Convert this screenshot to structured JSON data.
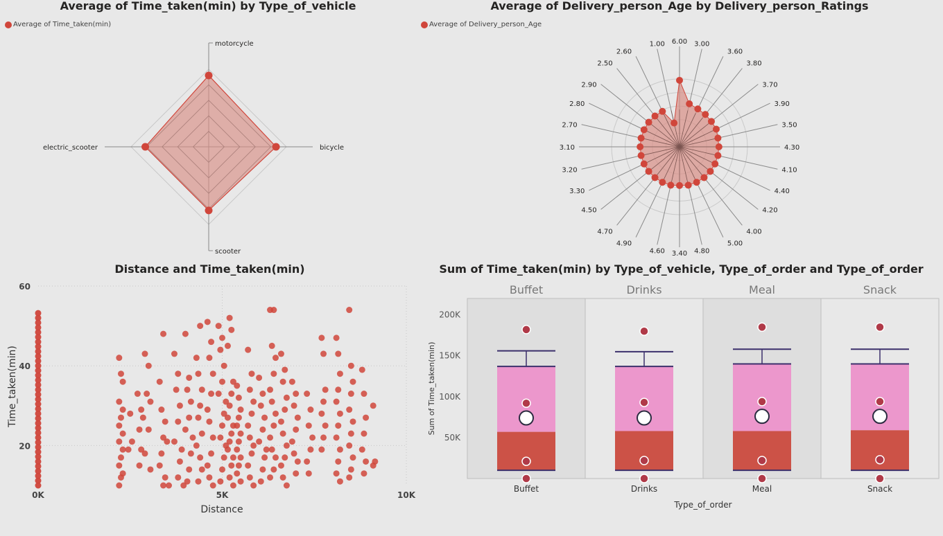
{
  "colors": {
    "series": "#d0463b",
    "fill": "#d98f86",
    "box_upper": "#ec97cc",
    "box_lower": "#cc5247",
    "whisker": "#3b2f6b",
    "mean": "#ffffff",
    "outlier": "#b03a48"
  },
  "chart_data": [
    {
      "type": "radar",
      "title": "Average of Time_taken(min) by Type_of_vehicle",
      "legend": [
        {
          "name": "Average of Time_taken(min)"
        }
      ],
      "legend_position": "top-left",
      "categories": [
        "motorcycle",
        "bicycle",
        "scooter",
        "electric_scooter"
      ],
      "series": [
        {
          "name": "Average of Time_taken(min)",
          "values": [
            27.6,
            26.0,
            24.6,
            24.5
          ]
        }
      ],
      "rmax": 30,
      "rings": 5
    },
    {
      "type": "radar",
      "title": "Average of Delivery_person_Age by Delivery_person_Ratings",
      "legend": [
        {
          "name": "Average of Delivery_person_Age"
        }
      ],
      "legend_position": "top-left",
      "categories": [
        "6.00",
        "3.00",
        "3.60",
        "3.80",
        "3.70",
        "3.90",
        "3.50",
        "4.30",
        "4.10",
        "4.40",
        "4.20",
        "4.00",
        "5.00",
        "4.80",
        "3.40",
        "4.60",
        "4.90",
        "4.70",
        "4.50",
        "3.30",
        "3.20",
        "3.10",
        "2.70",
        "2.80",
        "2.90",
        "2.50",
        "2.60",
        "1.00"
      ],
      "series": [
        {
          "name": "Average of Delivery_person_Age",
          "values": [
            98,
            65,
            62,
            61,
            60,
            60,
            58,
            58,
            58,
            58,
            58,
            58,
            58,
            58,
            57,
            58,
            58,
            58,
            58,
            58,
            58,
            58,
            58,
            58,
            58,
            58,
            58,
            36
          ]
        }
      ],
      "rmax": 100,
      "rings": 5
    },
    {
      "type": "scatter",
      "title": "Distance and Time_taken(min)",
      "xlabel": "Distance",
      "ylabel": "Time_taken(min)",
      "xlim": [
        0,
        10000
      ],
      "ylim": [
        10,
        60
      ],
      "x_ticks": [
        "0K",
        "5K",
        "10K"
      ],
      "y_ticks": [
        "20",
        "40",
        "60"
      ],
      "grid": true,
      "points": [
        [
          2200,
          42
        ],
        [
          2250,
          38
        ],
        [
          2300,
          36
        ],
        [
          2200,
          31
        ],
        [
          2300,
          29
        ],
        [
          2250,
          27
        ],
        [
          2200,
          25
        ],
        [
          2300,
          23
        ],
        [
          2200,
          21
        ],
        [
          2300,
          19
        ],
        [
          2250,
          17
        ],
        [
          2200,
          15
        ],
        [
          2300,
          13
        ],
        [
          2250,
          12
        ],
        [
          2200,
          10
        ],
        [
          2500,
          28
        ],
        [
          2550,
          21
        ],
        [
          2450,
          19
        ],
        [
          2700,
          33
        ],
        [
          2800,
          29
        ],
        [
          2750,
          24
        ],
        [
          2850,
          27
        ],
        [
          2800,
          19
        ],
        [
          2750,
          15
        ],
        [
          2900,
          43
        ],
        [
          3000,
          40
        ],
        [
          2950,
          33
        ],
        [
          3050,
          31
        ],
        [
          3000,
          24
        ],
        [
          2900,
          18
        ],
        [
          3050,
          14
        ],
        [
          3300,
          36
        ],
        [
          3400,
          48
        ],
        [
          3350,
          29
        ],
        [
          3450,
          26
        ],
        [
          3400,
          22
        ],
        [
          3350,
          18
        ],
        [
          3300,
          15
        ],
        [
          3500,
          21
        ],
        [
          3450,
          12
        ],
        [
          3400,
          10
        ],
        [
          3550,
          10
        ],
        [
          3700,
          43
        ],
        [
          3800,
          38
        ],
        [
          3750,
          34
        ],
        [
          3850,
          30
        ],
        [
          3800,
          26
        ],
        [
          3700,
          21
        ],
        [
          3900,
          19
        ],
        [
          3850,
          16
        ],
        [
          3800,
          12
        ],
        [
          3950,
          10
        ],
        [
          4000,
          48
        ],
        [
          4100,
          37
        ],
        [
          4050,
          34
        ],
        [
          4150,
          31
        ],
        [
          4100,
          27
        ],
        [
          4000,
          24
        ],
        [
          4200,
          22
        ],
        [
          4150,
          18
        ],
        [
          4100,
          14
        ],
        [
          4050,
          11
        ],
        [
          4300,
          42
        ],
        [
          4350,
          38
        ],
        [
          4400,
          50
        ],
        [
          4450,
          34
        ],
        [
          4400,
          30
        ],
        [
          4350,
          27
        ],
        [
          4450,
          23
        ],
        [
          4300,
          20
        ],
        [
          4400,
          17
        ],
        [
          4450,
          14
        ],
        [
          4350,
          11
        ],
        [
          4600,
          51
        ],
        [
          4700,
          46
        ],
        [
          4650,
          42
        ],
        [
          4750,
          38
        ],
        [
          4700,
          33
        ],
        [
          4600,
          29
        ],
        [
          4650,
          26
        ],
        [
          4750,
          22
        ],
        [
          4700,
          18
        ],
        [
          4600,
          15
        ],
        [
          4650,
          12
        ],
        [
          4750,
          10
        ],
        [
          4900,
          50
        ],
        [
          5000,
          47
        ],
        [
          4950,
          44
        ],
        [
          5050,
          40
        ],
        [
          5000,
          36
        ],
        [
          4900,
          33
        ],
        [
          5100,
          31
        ],
        [
          5050,
          28
        ],
        [
          5000,
          25
        ],
        [
          4950,
          22
        ],
        [
          5100,
          20
        ],
        [
          5050,
          17
        ],
        [
          5000,
          14
        ],
        [
          4950,
          11
        ],
        [
          5200,
          52
        ],
        [
          5250,
          49
        ],
        [
          5150,
          45
        ],
        [
          5300,
          36
        ],
        [
          5250,
          33
        ],
        [
          5200,
          30
        ],
        [
          5150,
          27
        ],
        [
          5300,
          25
        ],
        [
          5250,
          23
        ],
        [
          5200,
          21
        ],
        [
          5150,
          19
        ],
        [
          5300,
          17
        ],
        [
          5250,
          15
        ],
        [
          5200,
          12
        ],
        [
          5300,
          10
        ],
        [
          5400,
          35
        ],
        [
          5450,
          32
        ],
        [
          5500,
          29
        ],
        [
          5450,
          27
        ],
        [
          5400,
          25
        ],
        [
          5500,
          23
        ],
        [
          5450,
          21
        ],
        [
          5400,
          19
        ],
        [
          5500,
          17
        ],
        [
          5450,
          15
        ],
        [
          5400,
          13
        ],
        [
          5500,
          11
        ],
        [
          5700,
          44
        ],
        [
          5800,
          38
        ],
        [
          5750,
          34
        ],
        [
          5850,
          31
        ],
        [
          5800,
          28
        ],
        [
          5700,
          25
        ],
        [
          5750,
          22
        ],
        [
          5850,
          20
        ],
        [
          5800,
          18
        ],
        [
          5700,
          15
        ],
        [
          5750,
          12
        ],
        [
          5850,
          10
        ],
        [
          6000,
          37
        ],
        [
          6100,
          33
        ],
        [
          6050,
          30
        ],
        [
          6150,
          27
        ],
        [
          6100,
          24
        ],
        [
          6000,
          21
        ],
        [
          6200,
          19
        ],
        [
          6150,
          17
        ],
        [
          6100,
          14
        ],
        [
          6050,
          11
        ],
        [
          6300,
          54
        ],
        [
          6400,
          54
        ],
        [
          6350,
          45
        ],
        [
          6450,
          42
        ],
        [
          6400,
          38
        ],
        [
          6300,
          34
        ],
        [
          6350,
          31
        ],
        [
          6450,
          28
        ],
        [
          6400,
          25
        ],
        [
          6300,
          22
        ],
        [
          6350,
          19
        ],
        [
          6450,
          17
        ],
        [
          6400,
          14
        ],
        [
          6300,
          12
        ],
        [
          6600,
          43
        ],
        [
          6700,
          39
        ],
        [
          6650,
          36
        ],
        [
          6750,
          32
        ],
        [
          6700,
          29
        ],
        [
          6600,
          26
        ],
        [
          6650,
          23
        ],
        [
          6750,
          20
        ],
        [
          6700,
          17
        ],
        [
          6600,
          15
        ],
        [
          6650,
          12
        ],
        [
          6750,
          10
        ],
        [
          6900,
          36
        ],
        [
          7000,
          33
        ],
        [
          6950,
          30
        ],
        [
          7050,
          27
        ],
        [
          7000,
          24
        ],
        [
          6900,
          21
        ],
        [
          6950,
          18
        ],
        [
          7050,
          16
        ],
        [
          7000,
          13
        ],
        [
          7300,
          33
        ],
        [
          7400,
          29
        ],
        [
          7350,
          25
        ],
        [
          7450,
          22
        ],
        [
          7400,
          19
        ],
        [
          7300,
          16
        ],
        [
          7350,
          13
        ],
        [
          7700,
          47
        ],
        [
          7750,
          43
        ],
        [
          7800,
          34
        ],
        [
          7750,
          31
        ],
        [
          7700,
          28
        ],
        [
          7800,
          25
        ],
        [
          7750,
          22
        ],
        [
          7700,
          19
        ],
        [
          8100,
          47
        ],
        [
          8150,
          43
        ],
        [
          8200,
          38
        ],
        [
          8150,
          34
        ],
        [
          8100,
          31
        ],
        [
          8200,
          28
        ],
        [
          8150,
          25
        ],
        [
          8100,
          22
        ],
        [
          8200,
          19
        ],
        [
          8150,
          16
        ],
        [
          8100,
          13
        ],
        [
          8200,
          11
        ],
        [
          8450,
          54
        ],
        [
          8500,
          40
        ],
        [
          8550,
          36
        ],
        [
          8500,
          33
        ],
        [
          8450,
          29
        ],
        [
          8550,
          26
        ],
        [
          8500,
          23
        ],
        [
          8450,
          20
        ],
        [
          8550,
          17
        ],
        [
          8500,
          14
        ],
        [
          8450,
          12
        ],
        [
          8800,
          39
        ],
        [
          8850,
          33
        ],
        [
          8900,
          27
        ],
        [
          8850,
          23
        ],
        [
          8800,
          19
        ],
        [
          8900,
          16
        ],
        [
          8850,
          13
        ],
        [
          9100,
          30
        ],
        [
          9150,
          16
        ],
        [
          9100,
          15
        ]
      ]
    },
    {
      "type": "box",
      "title": "Sum of Time_taken(min) by Type_of_vehicle, Type_of_order and Type_of_order",
      "xlabel": "Type_of_order",
      "ylabel": "Sum of Time_taken(min)",
      "ylim": [
        0,
        220000
      ],
      "y_ticks": [
        "50K",
        "100K",
        "150K",
        "200K"
      ],
      "categories": [
        "Buffet",
        "Drinks",
        "Meal",
        "Snack"
      ],
      "boxes": [
        {
          "min": 10000,
          "q1": 10000,
          "median": 57000,
          "q3": 137000,
          "max": 156000,
          "mean": 74000,
          "points": [
            0,
            21000,
            92000,
            182000
          ]
        },
        {
          "min": 10000,
          "q1": 10000,
          "median": 58000,
          "q3": 137000,
          "max": 155000,
          "mean": 74000,
          "points": [
            0,
            22000,
            93000,
            180000
          ]
        },
        {
          "min": 10000,
          "q1": 10000,
          "median": 58000,
          "q3": 140000,
          "max": 158000,
          "mean": 76000,
          "points": [
            0,
            22000,
            94000,
            185000
          ]
        },
        {
          "min": 10000,
          "q1": 10000,
          "median": 59000,
          "q3": 140000,
          "max": 158000,
          "mean": 76000,
          "points": [
            0,
            23000,
            94000,
            185000
          ]
        }
      ]
    }
  ]
}
